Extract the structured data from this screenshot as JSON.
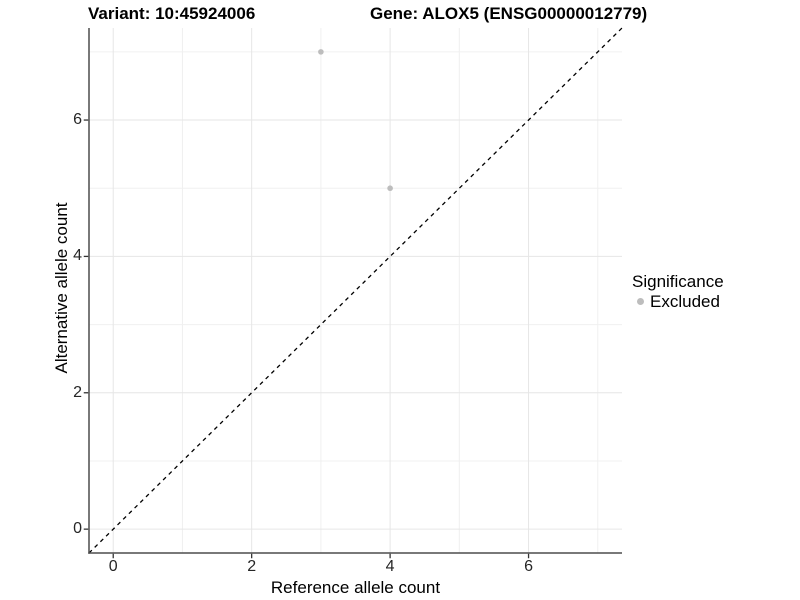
{
  "titles": {
    "variant": "Variant: 10:45924006",
    "gene": "Gene: ALOX5 (ENSG00000012779)"
  },
  "chart_data": {
    "type": "scatter",
    "title": "Variant: 10:45924006    Gene: ALOX5 (ENSG00000012779)",
    "xlabel": "Reference allele count",
    "ylabel": "Alternative allele count",
    "xlim": [
      -0.35,
      7.35
    ],
    "ylim": [
      -0.35,
      7.35
    ],
    "x_ticks": [
      0,
      2,
      4,
      6
    ],
    "y_ticks": [
      0,
      2,
      4,
      6
    ],
    "x_minor": [
      1,
      3,
      5,
      7
    ],
    "y_minor": [
      1,
      3,
      5,
      7
    ],
    "grid": "major and minor gridlines, white panel background",
    "series": [
      {
        "name": "Excluded",
        "color": "#bdbdbd",
        "points": [
          {
            "x": 3,
            "y": 7
          },
          {
            "x": 4,
            "y": 5
          }
        ]
      }
    ],
    "identity_line": {
      "slope": 1,
      "intercept": 0,
      "style": "dashed",
      "color": "#000000"
    },
    "legend": {
      "title": "Significance",
      "position": "right",
      "items": [
        {
          "label": "Excluded",
          "color": "#bdbdbd",
          "marker": "circle"
        }
      ]
    },
    "colors": {
      "axis_line": "#4d4d4d",
      "tick": "#333333",
      "grid_major": "#e6e6e6",
      "grid_minor": "#f0f0f0",
      "panel_bg": "#ffffff",
      "point": "#bdbdbd",
      "text": "#262626"
    }
  }
}
